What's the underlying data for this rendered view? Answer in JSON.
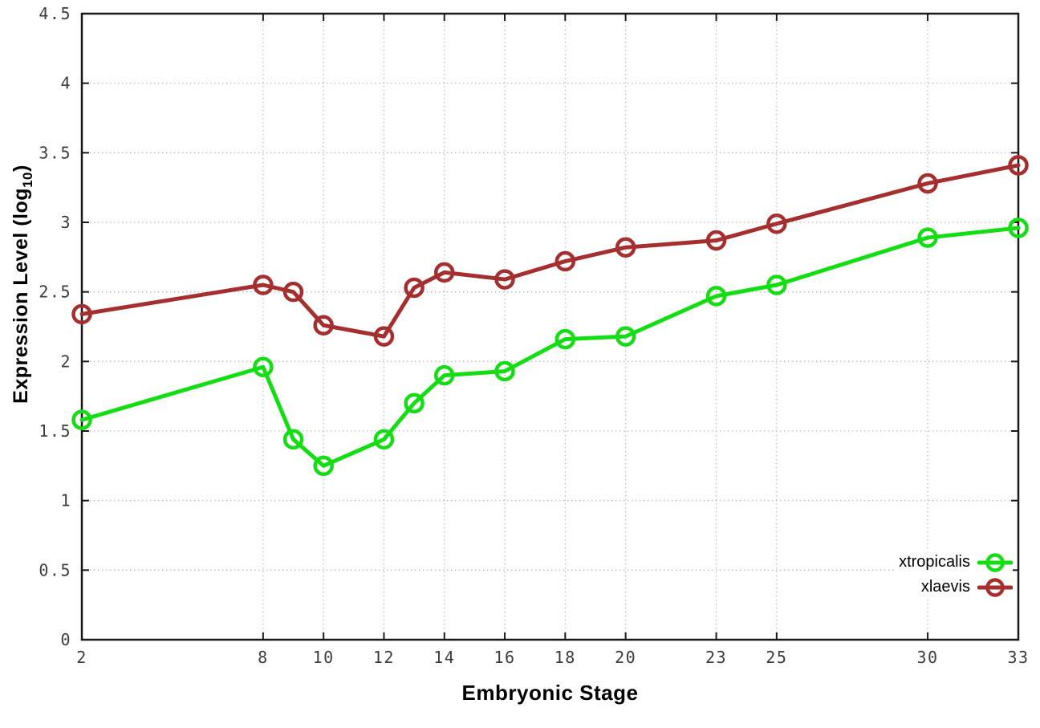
{
  "page": {
    "background": "#ffffff"
  },
  "chart_data": {
    "type": "line",
    "title": "",
    "xlabel": "Embryonic Stage",
    "ylabel": {
      "prefix": "Expression Level (log",
      "sub": "10",
      "suffix": ")"
    },
    "xlim": [
      2,
      33
    ],
    "ylim": [
      0,
      4.5
    ],
    "xticks": [
      2,
      8,
      10,
      12,
      14,
      16,
      18,
      20,
      23,
      25,
      30,
      33
    ],
    "yticks": [
      0,
      0.5,
      1,
      1.5,
      2,
      2.5,
      3,
      3.5,
      4,
      4.5
    ],
    "grid": true,
    "legend_position": "inside-bottom-right",
    "x": [
      2,
      8,
      9,
      10,
      12,
      13,
      14,
      16,
      18,
      20,
      23,
      25,
      30,
      33
    ],
    "series": [
      {
        "name": "xtropicalis",
        "color": "#14dd14",
        "values": [
          1.58,
          1.96,
          1.44,
          1.25,
          1.44,
          1.7,
          1.9,
          1.93,
          2.16,
          2.18,
          2.47,
          2.55,
          2.89,
          2.96
        ]
      },
      {
        "name": "xlaevis",
        "color": "#a52e2e",
        "values": [
          2.34,
          2.55,
          2.5,
          2.26,
          2.18,
          2.53,
          2.64,
          2.59,
          2.72,
          2.82,
          2.87,
          2.99,
          3.28,
          3.41
        ]
      }
    ],
    "colors": {
      "grid": "#b8b8b8",
      "axis": "#1a1a1a",
      "tick_label": "#3c3c3c"
    }
  }
}
